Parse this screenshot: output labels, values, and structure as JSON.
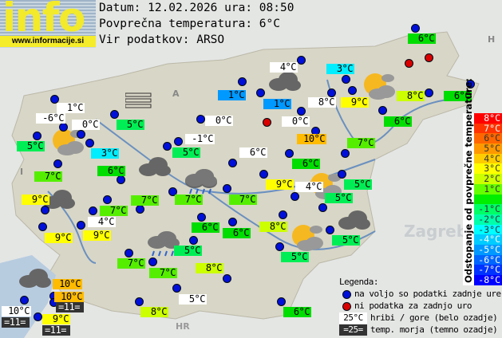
{
  "header": {
    "logo_text": "info",
    "logo_url": "www.informacije.si",
    "date_line": "Datum: 12.02.2026 ura: 08:50",
    "avg_line": "Povprečna temperatura: 6°C",
    "source_line": "Vir podatkov: ARSO"
  },
  "map_labels": [
    "Zagreb",
    "HR",
    "A",
    "I",
    "H"
  ],
  "stations": [
    {
      "t": "6°C",
      "c": "#00dd00"
    },
    {
      "t": "4°C",
      "c": "#ffffff"
    },
    {
      "t": "3°C",
      "c": "#00eeff"
    },
    {
      "t": "1°C",
      "c": "#0099ff"
    },
    {
      "t": "1°C",
      "c": "#0099ff"
    },
    {
      "t": "8°C",
      "c": "#ffffff"
    },
    {
      "t": "9°C",
      "c": "#ffff00"
    },
    {
      "t": "8°C",
      "c": "#ccff00"
    },
    {
      "t": "6°C",
      "c": "#00dd00"
    },
    {
      "t": "0°C",
      "c": "#ffffff"
    },
    {
      "t": "10°C",
      "c": "#ffbb00"
    },
    {
      "t": "6°C",
      "c": "#00dd00"
    },
    {
      "t": "7°C",
      "c": "#55ee00"
    },
    {
      "t": "6°C",
      "c": "#ffffff"
    },
    {
      "t": "6°C",
      "c": "#00dd00"
    },
    {
      "t": "9°C",
      "c": "#ffff00"
    },
    {
      "t": "4°C",
      "c": "#ffffff"
    },
    {
      "t": "5°C",
      "c": "#00ee55"
    },
    {
      "t": "5°C",
      "c": "#00ee55"
    },
    {
      "t": "1°C",
      "c": "#ffffff"
    },
    {
      "t": "-6°C",
      "c": "#ffffff"
    },
    {
      "t": "0°C",
      "c": "#ffffff"
    },
    {
      "t": "5°C",
      "c": "#00ee55"
    },
    {
      "t": "5°C",
      "c": "#00ee55"
    },
    {
      "t": "3°C",
      "c": "#00eeff"
    },
    {
      "t": "0°C",
      "c": "#ffffff"
    },
    {
      "t": "-1°C",
      "c": "#ffffff"
    },
    {
      "t": "5°C",
      "c": "#00ee55"
    },
    {
      "t": "7°C",
      "c": "#55ee00"
    },
    {
      "t": "6°C",
      "c": "#00dd00"
    },
    {
      "t": "9°C",
      "c": "#ffff00"
    },
    {
      "t": "7°C",
      "c": "#55ee00"
    },
    {
      "t": "4°C",
      "c": "#ffffff"
    },
    {
      "t": "9°C",
      "c": "#ffff00"
    },
    {
      "t": "9°C",
      "c": "#ffff00"
    },
    {
      "t": "7°C",
      "c": "#55ee00"
    },
    {
      "t": "7°C",
      "c": "#55ee00"
    },
    {
      "t": "7°C",
      "c": "#55ee00"
    },
    {
      "t": "6°C",
      "c": "#00dd00"
    },
    {
      "t": "6°C",
      "c": "#00dd00"
    },
    {
      "t": "5°C",
      "c": "#00ee55"
    },
    {
      "t": "7°C",
      "c": "#55ee00"
    },
    {
      "t": "7°C",
      "c": "#55ee00"
    },
    {
      "t": "8°C",
      "c": "#ccff00"
    },
    {
      "t": "5°C",
      "c": "#ffffff"
    },
    {
      "t": "8°C",
      "c": "#ccff00"
    },
    {
      "t": "10°C",
      "c": "#ffbb00"
    },
    {
      "t": "10°C",
      "c": "#ffbb00"
    },
    {
      "t": "10°C",
      "c": "#ffffff"
    },
    {
      "t": "9°C",
      "c": "#ffff00"
    },
    {
      "t": "8°C",
      "c": "#ccff00"
    },
    {
      "t": "5°C",
      "c": "#00ee55"
    },
    {
      "t": "5°C",
      "c": "#00ee55"
    },
    {
      "t": "6°C",
      "c": "#00dd00"
    }
  ],
  "sea_temps": [
    "=11=",
    "=11=",
    "=11="
  ],
  "dot_status_colors": {
    "available": "#0010d8",
    "no_data": "#d80000"
  },
  "dots_no_data_count": 3,
  "weather_icons": [
    "fog",
    "sun-cloud",
    "cloud",
    "cloud",
    "rain-cloud",
    "cloud",
    "sun-cloud",
    "cloud",
    "sun-cloud",
    "sun-cloud",
    "cloud",
    "cloud",
    "rain-cloud"
  ],
  "scale": {
    "title": "Odstopanje od povprečne temperature:",
    "items": [
      {
        "t": "8°C",
        "c": "#ff0000"
      },
      {
        "t": "7°C",
        "c": "#ff3300"
      },
      {
        "t": "6°C",
        "c": "#ff6600"
      },
      {
        "t": "5°C",
        "c": "#ff9900"
      },
      {
        "t": "4°C",
        "c": "#ffcc00"
      },
      {
        "t": "3°C",
        "c": "#ffff00"
      },
      {
        "t": "2°C",
        "c": "#ccff00"
      },
      {
        "t": "1°C",
        "c": "#66ff00"
      },
      {
        "t": "",
        "c": "#00ee00"
      },
      {
        "t": "-1°C",
        "c": "#00ff66"
      },
      {
        "t": "-2°C",
        "c": "#00ffaa"
      },
      {
        "t": "-3°C",
        "c": "#00ffff"
      },
      {
        "t": "-4°C",
        "c": "#00ccff"
      },
      {
        "t": "-5°C",
        "c": "#0099ff"
      },
      {
        "t": "-6°C",
        "c": "#0066ff"
      },
      {
        "t": "-7°C",
        "c": "#0033ff"
      },
      {
        "t": "-8°C",
        "c": "#0000ff"
      }
    ]
  },
  "legend": {
    "title": "Legenda:",
    "available": "na voljo so podatki zadnje ure",
    "no_data": "ni podatka za zadnjo uro",
    "mountain_sample": "25°C",
    "mountain": "hribi / gore (belo ozadje)",
    "sea_sample": "=25=",
    "sea": "temp. morja (temno ozadje)"
  }
}
